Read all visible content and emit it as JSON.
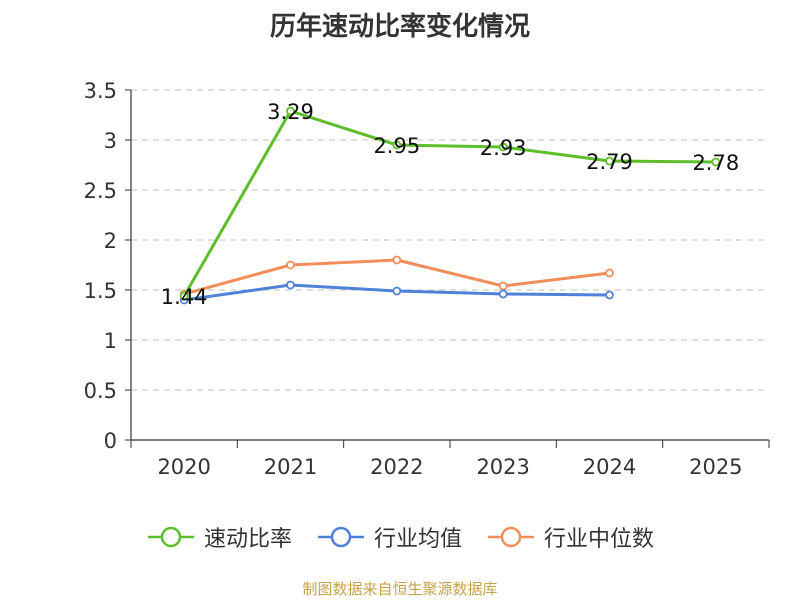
{
  "chart_data": {
    "type": "line",
    "title": "历年速动比率变化情况",
    "categories": [
      "2020",
      "2021",
      "2022",
      "2023",
      "2024",
      "2025"
    ],
    "ylim": [
      0,
      3.5
    ],
    "yticks": [
      "0",
      "0.5",
      "1",
      "1.5",
      "2",
      "2.5",
      "3",
      "3.5"
    ],
    "grid": true,
    "legend_position": "bottom",
    "series": [
      {
        "name": "速动比率",
        "color": "#5cbf2a",
        "values": [
          1.44,
          3.29,
          2.95,
          2.93,
          2.79,
          2.78
        ],
        "labels": [
          "1.44",
          "3.29",
          "2.95",
          "2.93",
          "2.79",
          "2.78"
        ]
      },
      {
        "name": "行业均值",
        "color": "#4f81d9",
        "values": [
          1.4,
          1.55,
          1.49,
          1.46,
          1.45,
          null
        ]
      },
      {
        "name": "行业中位数",
        "color": "#f28e5a",
        "values": [
          1.46,
          1.75,
          1.8,
          1.54,
          1.67,
          null
        ]
      }
    ]
  },
  "source": "制图数据来自恒生聚源数据库"
}
